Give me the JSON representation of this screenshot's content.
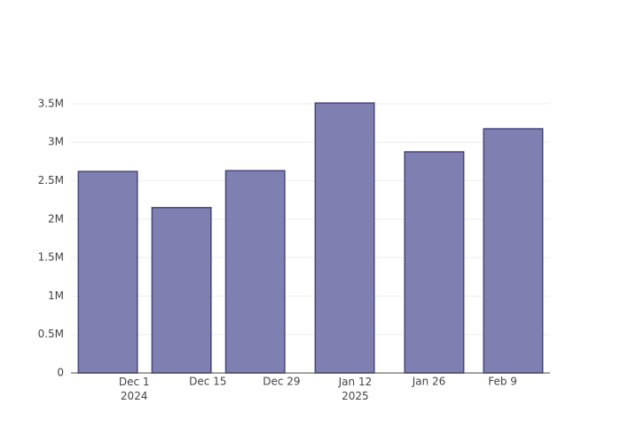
{
  "chart_data": {
    "type": "bar",
    "x": [
      "2024-11-26",
      "2024-12-10",
      "2024-12-24",
      "2025-01-10",
      "2025-01-27",
      "2025-02-11"
    ],
    "values": [
      2620000,
      2150000,
      2630000,
      3510000,
      2875000,
      3175000
    ],
    "color": "#7f7fb1",
    "line_color": "#464680",
    "xlim": [
      "2024-11-19",
      "2025-02-18"
    ],
    "xticks": [
      {
        "value": "2024-12-01",
        "label": "Dec 1\n2024"
      },
      {
        "value": "2024-12-15",
        "label": "Dec 15"
      },
      {
        "value": "2024-12-29",
        "label": "Dec 29"
      },
      {
        "value": "2025-01-12",
        "label": "Jan 12\n2025"
      },
      {
        "value": "2025-01-26",
        "label": "Jan 26"
      },
      {
        "value": "2025-02-09",
        "label": "Feb 9"
      }
    ],
    "ylim": [
      0,
      3695000
    ],
    "yticks": [
      0,
      {
        "value": 500000,
        "label": "0.5M"
      },
      {
        "value": 1000000,
        "label": "1M"
      },
      {
        "value": 1500000,
        "label": "1.5M"
      },
      {
        "value": 2000000,
        "label": "2M"
      },
      {
        "value": 2500000,
        "label": "2.5M"
      },
      {
        "value": 3000000,
        "label": "3M"
      },
      {
        "value": 3500000,
        "label": "3.5M"
      }
    ],
    "grid": true
  }
}
